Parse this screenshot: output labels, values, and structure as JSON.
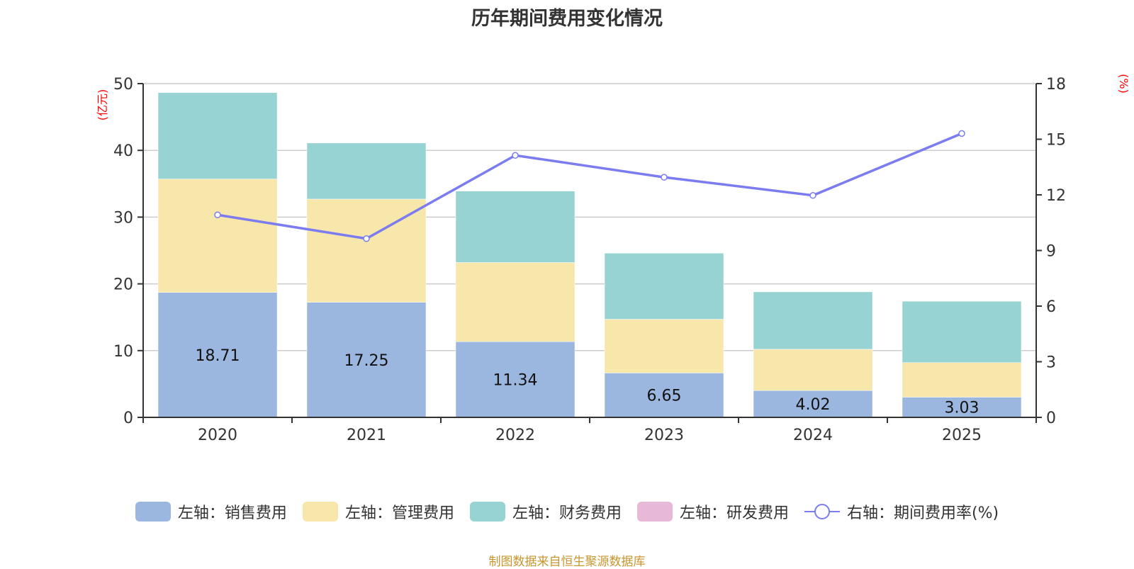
{
  "chart_data": {
    "type": "bar",
    "stacked": true,
    "title": "历年期间费用变化情况",
    "categories": [
      "2020",
      "2021",
      "2022",
      "2023",
      "2024",
      "2025"
    ],
    "left_axis": {
      "unit_label": "(亿元)",
      "ylim": [
        0,
        50
      ],
      "ticks": [
        "0",
        "10",
        "20",
        "30",
        "40",
        "50"
      ]
    },
    "right_axis": {
      "unit_label": "(%)",
      "ylim": [
        0,
        18
      ],
      "ticks": [
        "0",
        "3",
        "6",
        "9",
        "12",
        "15",
        "18"
      ]
    },
    "series": [
      {
        "name": "左轴：销售费用",
        "axis": "left",
        "type": "bar",
        "color": "#9bb7e0",
        "values": [
          18.71,
          17.25,
          11.34,
          6.65,
          4.02,
          3.03
        ],
        "labels": [
          "18.71",
          "17.25",
          "11.34",
          "6.65",
          "4.02",
          "3.03"
        ]
      },
      {
        "name": "左轴：管理费用",
        "axis": "left",
        "type": "bar",
        "color": "#f8e7aa",
        "values": [
          17.0,
          15.45,
          11.86,
          8.05,
          6.18,
          5.17
        ]
      },
      {
        "name": "左轴：财务费用",
        "axis": "left",
        "type": "bar",
        "color": "#98d3d4",
        "values": [
          12.95,
          8.4,
          10.7,
          9.9,
          8.6,
          9.2
        ]
      },
      {
        "name": "左轴：研发费用",
        "axis": "left",
        "type": "bar",
        "color": "#e7b8d8",
        "values": [
          0,
          0,
          0,
          0,
          0,
          0
        ]
      },
      {
        "name": "右轴：期间费用率(%)",
        "axis": "right",
        "type": "line",
        "color": "#7b7cf0",
        "values": [
          10.92,
          9.64,
          14.13,
          12.95,
          11.97,
          15.31
        ]
      }
    ],
    "grid": true,
    "legend_position": "bottom"
  },
  "source": "制图数据来自恒生聚源数据库"
}
